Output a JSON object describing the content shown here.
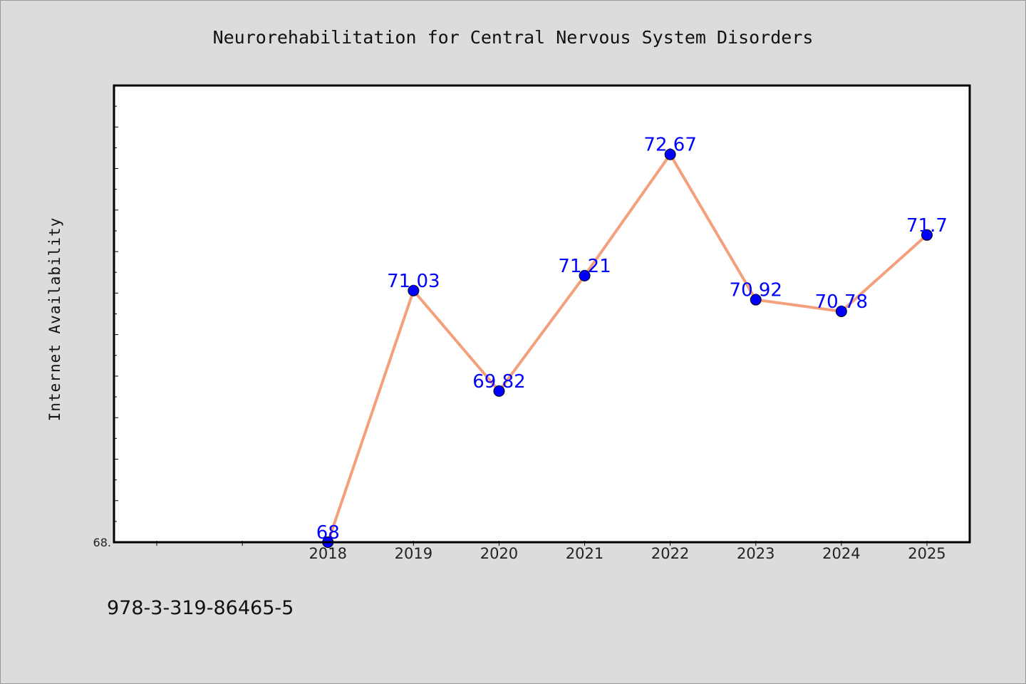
{
  "footer_text": "978-3-319-86465-5",
  "colors": {
    "background": "#dcdcdc",
    "plot_background": "#ffffff",
    "line": "#f4a07c",
    "marker": "#0000ff",
    "data_label": "#0000ff"
  },
  "chart_data": {
    "type": "line",
    "title": "Neurorehabilitation for Central Nervous System Disorders",
    "xlabel": "",
    "ylabel": "Internet Availability",
    "x": [
      "2018",
      "2019",
      "2020",
      "2021",
      "2022",
      "2023",
      "2024",
      "2025"
    ],
    "x_positions": [
      2018,
      2019,
      2020,
      2021,
      2022,
      2023,
      2024,
      2025
    ],
    "xlim": [
      2015.5,
      2025.5
    ],
    "ylim": [
      68.0,
      73.5
    ],
    "y_tick_labels": [
      {
        "value": 68.0,
        "label": "68."
      }
    ],
    "series": [
      {
        "values": [
          68,
          71.03,
          69.82,
          71.21,
          72.67,
          70.92,
          70.78,
          71.7
        ],
        "labels": [
          "68",
          "71.03",
          "69.82",
          "71.21",
          "72.67",
          "70.92",
          "70.78",
          "71.7"
        ],
        "marker": "circle"
      }
    ],
    "grid": false,
    "legend": "none"
  }
}
